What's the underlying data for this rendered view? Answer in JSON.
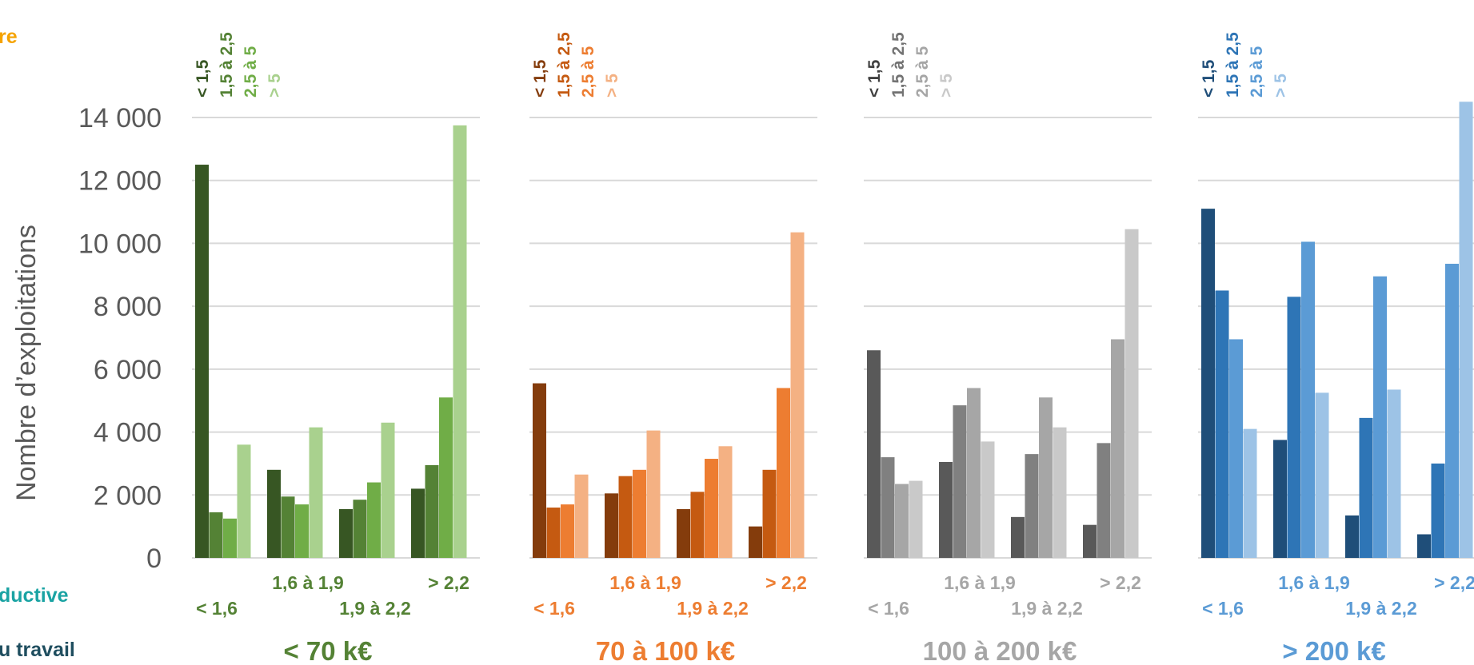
{
  "edge_labels": [
    {
      "text": "re",
      "color": "#F5A300"
    },
    {
      "text": "ductive",
      "color": "#1AA3A3"
    },
    {
      "text": "u travail",
      "color": "#1F4E5F"
    }
  ],
  "chart_data": {
    "type": "bar",
    "ylabel": "Nombre d’exploitations",
    "ylim": [
      0,
      14000
    ],
    "yticks": [
      "0",
      "2 000",
      "4 000",
      "6 000",
      "8 000",
      "10 000",
      "12 000",
      "14 000"
    ],
    "ytick_values": [
      0,
      2000,
      4000,
      6000,
      8000,
      10000,
      12000,
      14000
    ],
    "grid": true,
    "categories": [
      "< 1,6",
      "1,6 à 1,9",
      "1,9 à 2,2",
      "> 2,2"
    ],
    "series_legend": [
      "< 1,5",
      "1,5 à 2,5",
      "2,5 à 5",
      "> 5"
    ],
    "panels": [
      {
        "name": "< 70 k€",
        "colors": [
          "#375623",
          "#548235",
          "#70AD47",
          "#A9D18E"
        ],
        "label_color": "#548235",
        "legend_colors": [
          "#375623",
          "#548235",
          "#70AD47",
          "#A9D18E"
        ],
        "values": [
          [
            12500,
            1450,
            1250,
            3600
          ],
          [
            2800,
            1950,
            1700,
            4150
          ],
          [
            1550,
            1850,
            2400,
            4300
          ],
          [
            2200,
            2950,
            5100,
            13750
          ]
        ]
      },
      {
        "name": "70 à 100 k€",
        "colors": [
          "#843C0C",
          "#C55A11",
          "#ED7D31",
          "#F4B183"
        ],
        "label_color": "#ED7D31",
        "legend_colors": [
          "#843C0C",
          "#C55A11",
          "#ED7D31",
          "#F4B183"
        ],
        "values": [
          [
            5550,
            1600,
            1700,
            2650
          ],
          [
            2050,
            2600,
            2800,
            4050
          ],
          [
            1550,
            2100,
            3150,
            3550
          ],
          [
            1000,
            2800,
            5400,
            10350
          ]
        ]
      },
      {
        "name": "100 à 200 k€",
        "colors": [
          "#595959",
          "#808080",
          "#A6A6A6",
          "#C9C9C9"
        ],
        "label_color": "#A6A6A6",
        "legend_colors": [
          "#404040",
          "#737373",
          "#A6A6A6",
          "#C9C9C9"
        ],
        "values": [
          [
            6600,
            3200,
            2350,
            2450
          ],
          [
            3050,
            4850,
            5400,
            3700
          ],
          [
            1300,
            3300,
            5100,
            4150
          ],
          [
            1050,
            3650,
            6950,
            10450
          ]
        ]
      },
      {
        "name": "> 200 k€",
        "colors": [
          "#1F4E79",
          "#2E75B6",
          "#5B9BD5",
          "#9DC3E6"
        ],
        "label_color": "#5B9BD5",
        "legend_colors": [
          "#1F4E79",
          "#2E75B6",
          "#5B9BD5",
          "#9DC3E6"
        ],
        "values": [
          [
            11100,
            8500,
            6950,
            4100
          ],
          [
            3750,
            8300,
            10050,
            5250
          ],
          [
            1350,
            4450,
            8950,
            5350
          ],
          [
            750,
            3000,
            9350,
            14500
          ]
        ]
      }
    ]
  }
}
